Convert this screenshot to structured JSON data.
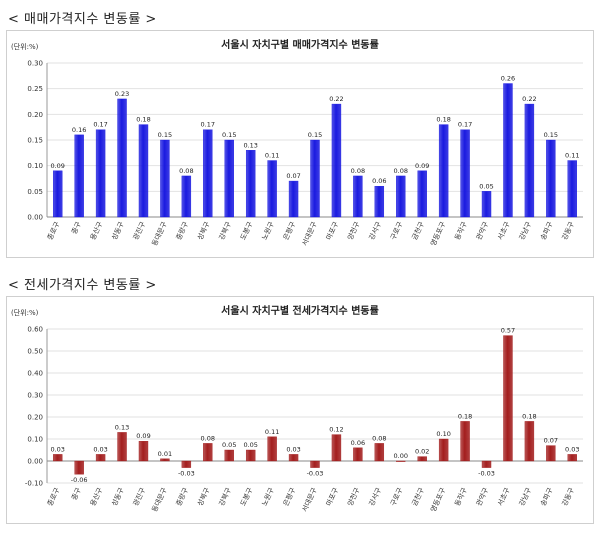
{
  "sections": [
    {
      "title": "< 매매가격지수 변동률 >"
    },
    {
      "title": "< 전세가격지수 변동률 >"
    }
  ],
  "chart_data": [
    {
      "type": "bar",
      "title": "서울시 자치구별 매매가격지수 변동률",
      "unit_label": "(단위:%)",
      "categories": [
        "종로구",
        "중구",
        "용산구",
        "성동구",
        "광진구",
        "동대문구",
        "중랑구",
        "성북구",
        "강북구",
        "도봉구",
        "노원구",
        "은평구",
        "서대문구",
        "마포구",
        "양천구",
        "강서구",
        "구로구",
        "금천구",
        "영등포구",
        "동작구",
        "관악구",
        "서초구",
        "강남구",
        "송파구",
        "강동구"
      ],
      "values": [
        0.09,
        0.16,
        0.17,
        0.23,
        0.18,
        0.15,
        0.08,
        0.17,
        0.15,
        0.13,
        0.11,
        0.07,
        0.15,
        0.22,
        0.08,
        0.06,
        0.08,
        0.09,
        0.18,
        0.17,
        0.05,
        0.26,
        0.22,
        0.15,
        0.11
      ],
      "value_labels": [
        "0.09",
        "0.16",
        "0.17",
        "0.23",
        "0.18",
        "0.15",
        "0.08",
        "0.17",
        "0.15",
        "0.13",
        "0.11",
        "0.07",
        "0.15",
        "0.22",
        "0.08",
        "0.06",
        "0.08",
        "0.09",
        "0.18",
        "0.17",
        "0.05",
        "0.26",
        "0.22",
        "0.15",
        "0.11"
      ],
      "yticks": [
        "0.00",
        "0.05",
        "0.10",
        "0.15",
        "0.20",
        "0.25",
        "0.30"
      ],
      "ylim": [
        0,
        0.3
      ],
      "grid": true,
      "bar_color": "#1a1ae0"
    },
    {
      "type": "bar",
      "title": "서울시 자치구별 전세가격지수 변동률",
      "unit_label": "(단위:%)",
      "categories": [
        "종로구",
        "중구",
        "용산구",
        "성동구",
        "광진구",
        "동대문구",
        "중랑구",
        "성북구",
        "강북구",
        "도봉구",
        "노원구",
        "은평구",
        "서대문구",
        "마포구",
        "양천구",
        "강서구",
        "구로구",
        "금천구",
        "영등포구",
        "동작구",
        "관악구",
        "서초구",
        "강남구",
        "송파구",
        "강동구"
      ],
      "values": [
        0.03,
        -0.06,
        0.03,
        0.13,
        0.09,
        0.01,
        -0.03,
        0.08,
        0.05,
        0.05,
        0.11,
        0.03,
        -0.03,
        0.12,
        0.06,
        0.08,
        0.0,
        0.02,
        0.1,
        0.18,
        -0.03,
        0.57,
        0.18,
        0.07,
        0.03
      ],
      "value_labels": [
        "0.03",
        "-0.06",
        "0.03",
        "0.13",
        "0.09",
        "0.01",
        "-0.03",
        "0.08",
        "0.05",
        "0.05",
        "0.11",
        "0.03",
        "-0.03",
        "0.12",
        "0.06",
        "0.08",
        "0.00",
        "0.02",
        "0.10",
        "0.18",
        "-0.03",
        "0.57",
        "0.18",
        "0.07",
        "0.03"
      ],
      "yticks": [
        "-0.10",
        "0.00",
        "0.10",
        "0.20",
        "0.30",
        "0.40",
        "0.50",
        "0.60"
      ],
      "ylim": [
        -0.1,
        0.6
      ],
      "grid": true,
      "bar_color": "#a31e1e"
    }
  ]
}
